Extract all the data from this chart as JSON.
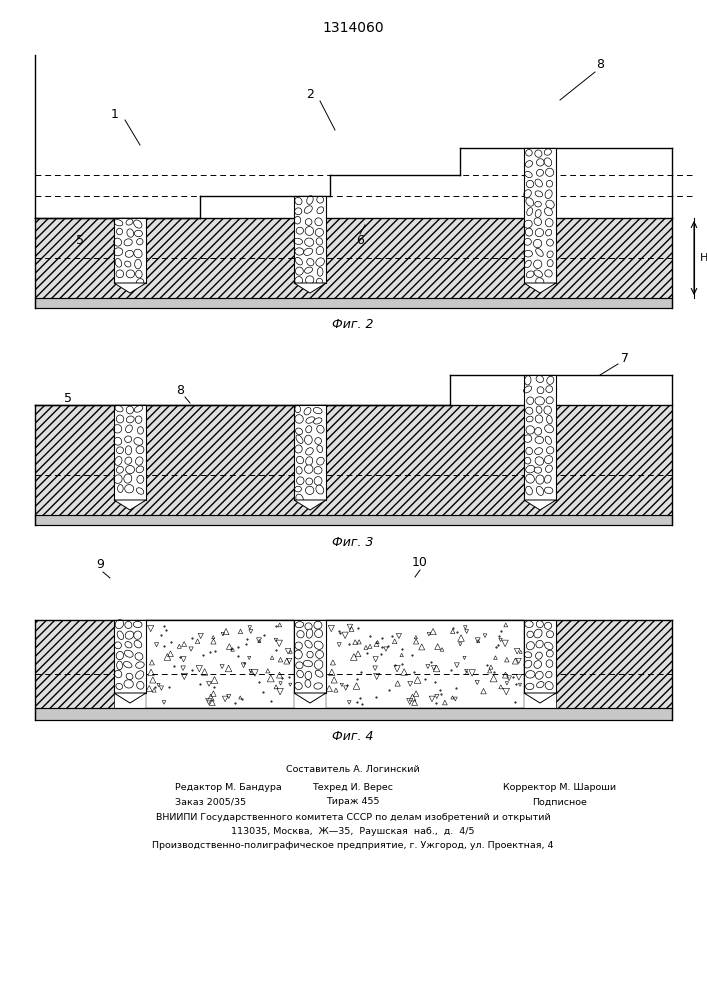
{
  "title": "1314060",
  "fig2_label": "Фиг. 2",
  "fig3_label": "Фиг. 3",
  "fig4_label": "Фиг. 4",
  "footer_line1": "Составитель А. Логинский",
  "footer_line2a": "Редактор М. Бандура",
  "footer_line2b": "Техред И. Верес",
  "footer_line2c": "Корректор М. Шароши",
  "footer_line3a": "Заказ 2005/35",
  "footer_line3b": "Тираж 455",
  "footer_line3c": "Подписное",
  "footer_line4": "ВНИИПИ Государственного комитета СССР по делам изобретений и открытий",
  "footer_line5": "113035, Москва,  Ж—35,  Раушская  наб.,  д.  4/5",
  "footer_line6": "Производственно-полиграфическое предприятие, г. Ужгород, ул. Проектная, 4",
  "bg_color": "#ffffff"
}
